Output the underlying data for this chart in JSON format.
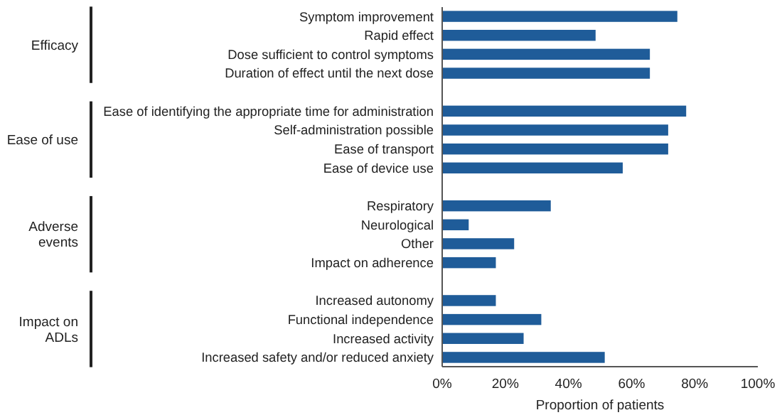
{
  "chart_data": {
    "type": "bar",
    "orientation": "horizontal",
    "xlabel": "Proportion of patients",
    "categories": [
      "Symptom improvement",
      "Rapid effect",
      "Dose sufficient to control symptoms",
      "Duration of effect until the next dose",
      null,
      "Ease of identifying the appropriate time for administration",
      "Self-administration possible",
      "Ease of transport",
      "Ease of device use",
      null,
      "Respiratory",
      "Neurological",
      "Other",
      "Impact on adherence",
      null,
      "Increased autonomy",
      "Functional independence",
      "Increased activity",
      "Increased safety and/or reduced anxiety"
    ],
    "values": [
      74.5,
      48.6,
      65.8,
      65.8,
      null,
      77.3,
      71.6,
      71.6,
      57.2,
      null,
      34.4,
      8.4,
      22.8,
      17,
      null,
      17,
      31.4,
      25.8,
      51.5
    ],
    "color": "#1f5c99",
    "xlim": [
      0,
      100
    ],
    "xticks": [
      {
        "value": 0,
        "label": "0%"
      },
      {
        "value": 20,
        "label": "20%"
      },
      {
        "value": 40,
        "label": "40%"
      },
      {
        "value": 60,
        "label": "60%"
      },
      {
        "value": 80,
        "label": "80%"
      },
      {
        "value": 100,
        "label": "100%"
      }
    ],
    "annotations": [
      "Efficacy",
      "Ease of use",
      "Adverse\nevents",
      "Impact on\nADLs"
    ],
    "grid": false
  }
}
